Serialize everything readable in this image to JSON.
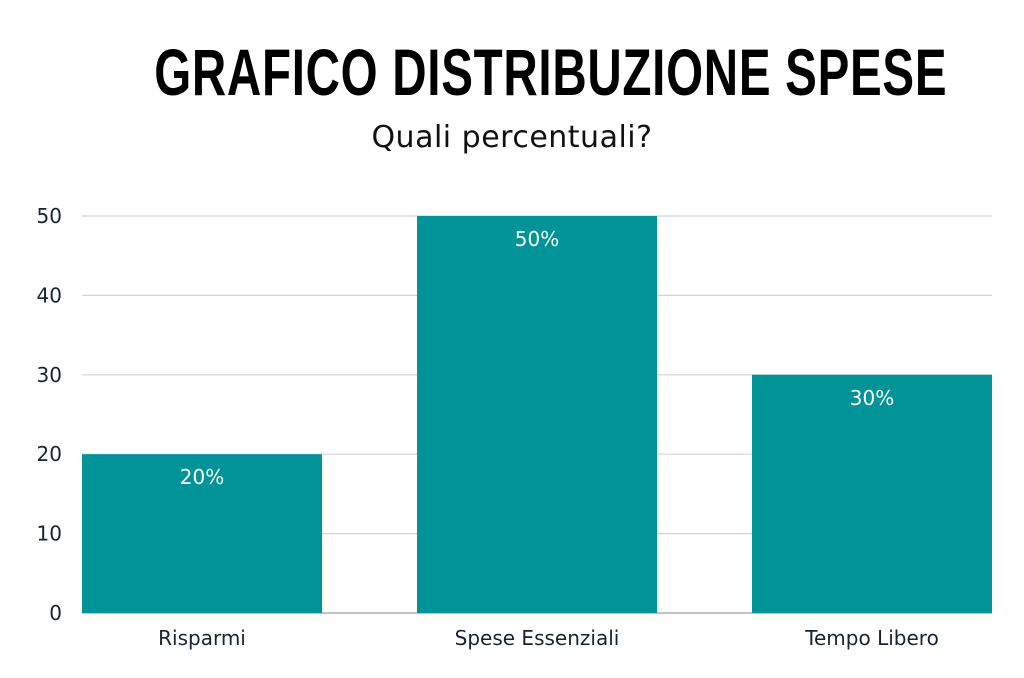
{
  "chart_data": {
    "type": "bar",
    "title": "GRAFICO DISTRIBUZIONE SPESE",
    "subtitle": "Quali percentuali?",
    "categories": [
      "Risparmi",
      "Spese Essenziali",
      "Tempo Libero"
    ],
    "values": [
      20,
      50,
      30
    ],
    "data_labels": [
      "20%",
      "50%",
      "30%"
    ],
    "xlabel": "",
    "ylabel": "",
    "ylim": [
      0,
      50
    ],
    "yticks": [
      0,
      10,
      20,
      30,
      40,
      50
    ],
    "grid": true,
    "legend": "none",
    "colors": {
      "bar": "#009499",
      "grid": "#cfd3d8",
      "text": "#1a2230"
    }
  }
}
